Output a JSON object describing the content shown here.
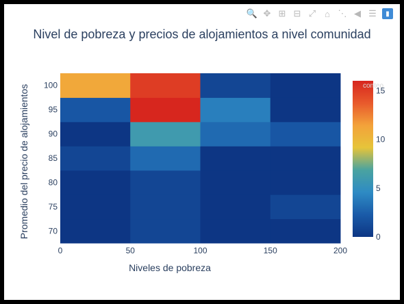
{
  "modebar": {
    "icons": [
      "zoom-icon",
      "pan-icon",
      "zoom-in-icon",
      "zoom-out-icon",
      "autoscale-icon",
      "reset-axes-icon",
      "spike-lines-icon",
      "hover-closest-icon",
      "hover-compare-icon",
      "plotly-logo-icon"
    ]
  },
  "chart_data": {
    "type": "heatmap",
    "title": "Nivel de pobreza y precios de alojamientos a nivel comunidad",
    "xlabel": "Niveles de pobreza",
    "ylabel": "Promedio del precio de alojamientos",
    "x_bins": [
      [
        0,
        50
      ],
      [
        50,
        100
      ],
      [
        100,
        150
      ],
      [
        150,
        200
      ]
    ],
    "y_bins": [
      [
        67.5,
        72.5
      ],
      [
        72.5,
        77.5
      ],
      [
        77.5,
        82.5
      ],
      [
        82.5,
        87.5
      ],
      [
        87.5,
        92.5
      ],
      [
        92.5,
        97.5
      ],
      [
        97.5,
        102.5
      ]
    ],
    "xlim": [
      0,
      200
    ],
    "ylim": [
      67.5,
      102.5
    ],
    "x_ticks": [
      "0",
      "50",
      "100",
      "150",
      "200"
    ],
    "y_ticks": [
      "70",
      "75",
      "80",
      "85",
      "90",
      "95",
      "100"
    ],
    "z": [
      [
        0,
        1,
        0,
        0
      ],
      [
        0,
        1,
        0,
        1
      ],
      [
        0,
        1,
        0,
        0
      ],
      [
        1,
        3,
        0,
        0
      ],
      [
        0,
        6,
        3,
        2
      ],
      [
        2,
        16,
        4,
        0
      ],
      [
        11,
        15,
        1,
        0
      ]
    ],
    "colorscale": [
      "#0d3684",
      "#1a5ba8",
      "#2e8bc4",
      "#4aa3a0",
      "#e6c43a",
      "#f3a23a",
      "#e85a2c",
      "#d7261e"
    ],
    "colorbar": {
      "min": 0,
      "max": 16,
      "ticks": [
        "0",
        "5",
        "10",
        "15"
      ],
      "title": "conteo"
    }
  }
}
